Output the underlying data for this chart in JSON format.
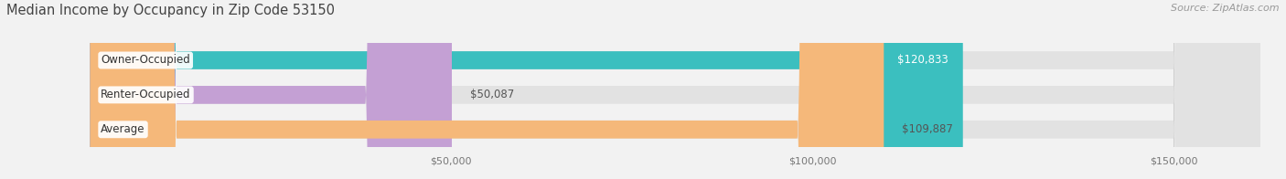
{
  "title": "Median Income by Occupancy in Zip Code 53150",
  "source": "Source: ZipAtlas.com",
  "categories": [
    "Owner-Occupied",
    "Renter-Occupied",
    "Average"
  ],
  "values": [
    120833,
    50087,
    109887
  ],
  "bar_colors": [
    "#3bbfbf",
    "#c4a0d4",
    "#f5b87a"
  ],
  "label_texts": [
    "$120,833",
    "$50,087",
    "$109,887"
  ],
  "value_label_colors": [
    "#ffffff",
    "#555555",
    "#555555"
  ],
  "xmax": 162000,
  "xtick_vals": [
    50000,
    100000,
    150000
  ],
  "xticklabels": [
    "$50,000",
    "$100,000",
    "$150,000"
  ],
  "bg_color": "#f2f2f2",
  "bar_bg_color": "#e2e2e2",
  "title_fontsize": 10.5,
  "source_fontsize": 8,
  "label_fontsize": 8.5,
  "value_fontsize": 8.5
}
